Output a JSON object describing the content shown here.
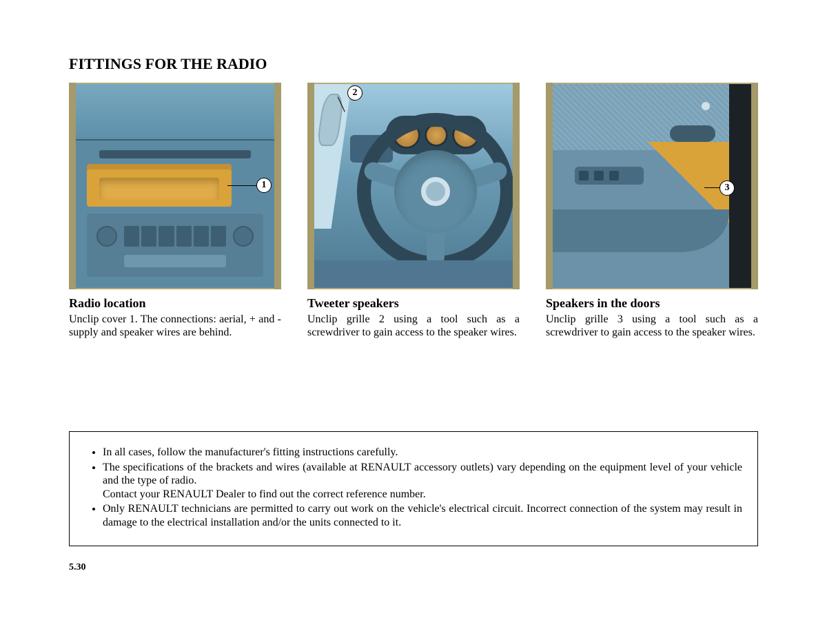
{
  "title": "FITTINGS FOR THE RADIO",
  "page_number": "5.30",
  "colors": {
    "olive_bar": "#a59a6a",
    "highlight_orange": "#d9a33a",
    "dashboard_blue": "#6b92a8",
    "dashboard_mid": "#5d8aa3",
    "text": "#000000"
  },
  "panels": [
    {
      "callout": "1",
      "heading": "Radio location",
      "body": "Unclip cover 1. The connections: aerial, + and - supply and speaker wires are behind."
    },
    {
      "callout": "2",
      "heading": "Tweeter speakers",
      "body": "Unclip grille 2 using a tool such as a screwdriver to gain access to the speaker wires."
    },
    {
      "callout": "3",
      "heading": "Speakers in the doors",
      "body": "Unclip grille 3 using a tool such as a screwdriver to gain access to the speaker wires."
    }
  ],
  "notes": [
    "In all cases, follow the manufacturer's fitting instructions carefully.",
    "The specifications of the brackets and wires (available at RENAULT accessory outlets) vary depending on the equipment level of your vehicle and the type of radio.|Contact your RENAULT Dealer to find out the correct reference number.",
    "Only RENAULT technicians are permitted to carry out work on the vehicle's electrical circuit. Incorrect connection of the system may result in damage to the electrical installation and/or the units connected to it."
  ]
}
